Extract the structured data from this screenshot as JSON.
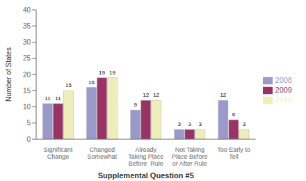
{
  "chart_data": {
    "type": "bar",
    "categories": [
      "Significant\nChange",
      "Changed\nSomewhat",
      "Already\nTaking Place\nBefore  Rule",
      "Not Taking\nPlace Before\nor After Rule",
      "Too Early to\nTell"
    ],
    "series": [
      {
        "name": "2008",
        "color": "#9999CC",
        "values": [
          11,
          16,
          9,
          3,
          12
        ]
      },
      {
        "name": "2009",
        "color": "#993366",
        "values": [
          11,
          19,
          12,
          3,
          6
        ]
      },
      {
        "name": "2010",
        "color": "#EEEEBB",
        "values": [
          15,
          19,
          12,
          3,
          3
        ]
      }
    ],
    "ylabel": "Number of States",
    "xlabel": "Supplemental Question #5",
    "ylim": [
      0,
      40
    ],
    "yticks": [
      0,
      5,
      10,
      15,
      20,
      25,
      30,
      35,
      40
    ],
    "data_labels": true,
    "legend": "right",
    "grid": false
  }
}
